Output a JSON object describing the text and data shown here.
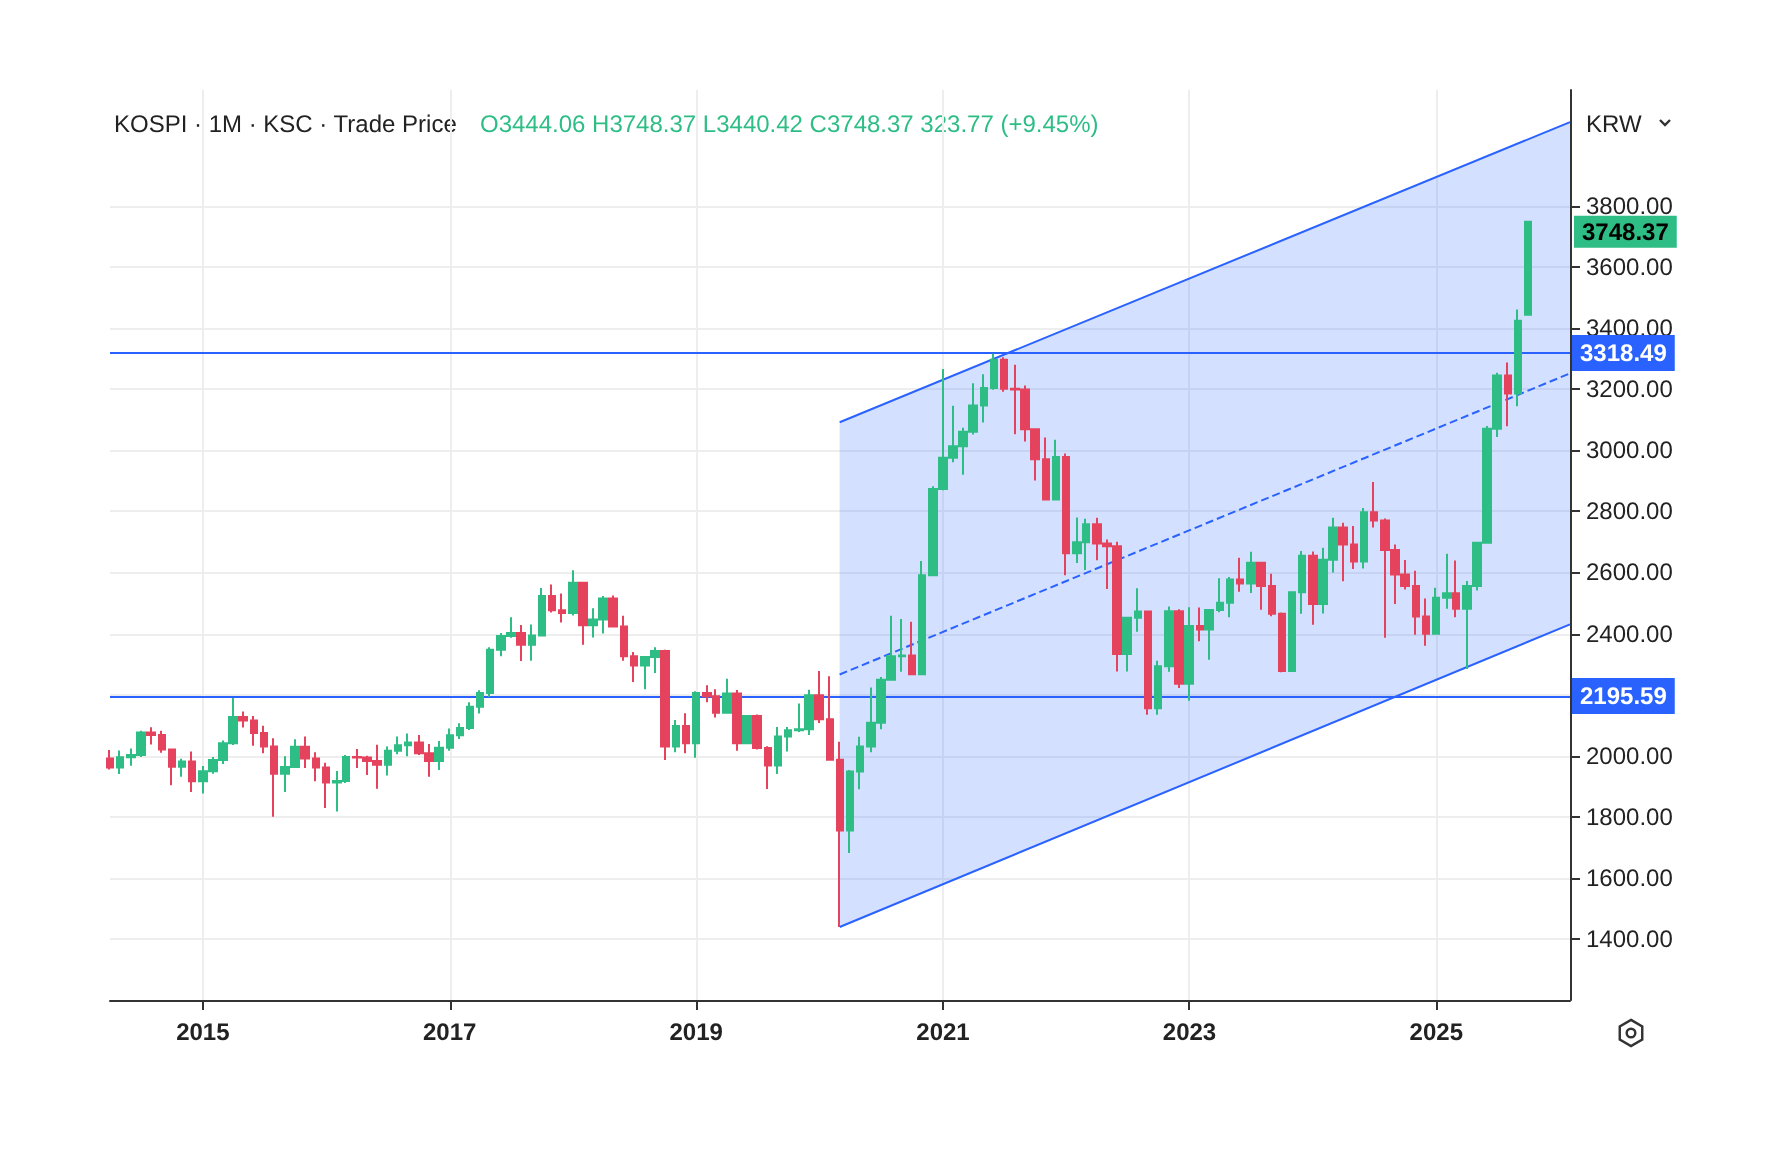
{
  "chart_data": {
    "type": "candlestick",
    "title": "KOSPI · 1M · KSC · Trade Price",
    "subtitle": "O3444.06 H3748.37 L3440.42 C3748.37 323.77 (+9.45%)",
    "ylabel": "KRW",
    "colors": [
      "#e5435d",
      "#2ebd85",
      "#2ebd85",
      "#2ebd85",
      "#e5435d",
      "#e5435d",
      "#e5435d",
      "#2ebd85",
      "#e5435d",
      "#2ebd85",
      "#2ebd85",
      "#2ebd85",
      "#2ebd85",
      "#e5435d",
      "#e5435d",
      "#e5435d",
      "#e5435d",
      "#2ebd85",
      "#2ebd85",
      "#e5435d",
      "#e5435d",
      "#e5435d",
      "#2ebd85",
      "#2ebd85",
      "#e5435d",
      "#e5435d",
      "#e5435d",
      "#2ebd85",
      "#2ebd85",
      "#2ebd85",
      "#e5435d",
      "#e5435d",
      "#2ebd85",
      "#2ebd85",
      "#2ebd85",
      "#2ebd85",
      "#2ebd85",
      "#2ebd85",
      "#2ebd85",
      "#2ebd85",
      "#e5435d",
      "#2ebd85",
      "#2ebd85",
      "#e5435d",
      "#e5435d",
      "#2ebd85",
      "#e5435d",
      "#2ebd85",
      "#2ebd85",
      "#e5435d",
      "#e5435d",
      "#e5435d",
      "#2ebd85",
      "#2ebd85",
      "#e5435d",
      "#2ebd85",
      "#e5435d",
      "#2ebd85",
      "#e5435d",
      "#e5435d",
      "#2ebd85",
      "#e5435d",
      "#2ebd85",
      "#e5435d",
      "#e5435d",
      "#2ebd85",
      "#2ebd85",
      "#2ebd85",
      "#2ebd85",
      "#e5435d",
      "#e5435d",
      "#e5435d",
      "#2ebd85",
      "#2ebd85",
      "#2ebd85",
      "#2ebd85",
      "#2ebd85",
      "#2ebd85",
      "#e5435d",
      "#2ebd85",
      "#2ebd85",
      "#2ebd85",
      "#2ebd85",
      "#2ebd85",
      "#2ebd85",
      "#2ebd85",
      "#2ebd85",
      "#e5435d",
      "#e5435d",
      "#e5435d",
      "#e5435d",
      "#e5435d",
      "#2ebd85",
      "#e5435d",
      "#2ebd85",
      "#2ebd85",
      "#e5435d",
      "#e5435d",
      "#e5435d",
      "#2ebd85",
      "#2ebd85",
      "#e5435d",
      "#2ebd85",
      "#2ebd85",
      "#e5435d",
      "#2ebd85",
      "#e5435d",
      "#2ebd85",
      "#2ebd85",
      "#2ebd85",
      "#e5435d",
      "#2ebd85",
      "#e5435d",
      "#e5435d",
      "#e5435d",
      "#2ebd85",
      "#2ebd85",
      "#e5435d",
      "#2ebd85",
      "#2ebd85",
      "#e5435d",
      "#e5435d",
      "#2ebd85",
      "#e5435d",
      "#e5435d",
      "#e5435d",
      "#e5435d",
      "#e5435d",
      "#e5435d",
      "#2ebd85",
      "#2ebd85",
      "#e5435d",
      "#2ebd85",
      "#2ebd85",
      "#2ebd85",
      "#2ebd85",
      "#e5435d",
      "#2ebd85",
      "#2ebd85"
    ],
    "x": [
      "2014-04",
      "2014-05",
      "2014-06",
      "2014-07",
      "2014-08",
      "2014-09",
      "2014-10",
      "2014-11",
      "2014-12",
      "2015-01",
      "2015-02",
      "2015-03",
      "2015-04",
      "2015-05",
      "2015-06",
      "2015-07",
      "2015-08",
      "2015-09",
      "2015-10",
      "2015-11",
      "2015-12",
      "2016-01",
      "2016-02",
      "2016-03",
      "2016-04",
      "2016-05",
      "2016-06",
      "2016-07",
      "2016-08",
      "2016-09",
      "2016-10",
      "2016-11",
      "2016-12",
      "2017-01",
      "2017-02",
      "2017-03",
      "2017-04",
      "2017-05",
      "2017-06",
      "2017-07",
      "2017-08",
      "2017-09",
      "2017-10",
      "2017-11",
      "2017-12",
      "2018-01",
      "2018-02",
      "2018-03",
      "2018-04",
      "2018-05",
      "2018-06",
      "2018-07",
      "2018-08",
      "2018-09",
      "2018-10",
      "2018-11",
      "2018-12",
      "2019-01",
      "2019-02",
      "2019-03",
      "2019-04",
      "2019-05",
      "2019-06",
      "2019-07",
      "2019-08",
      "2019-09",
      "2019-10",
      "2019-11",
      "2019-12",
      "2020-01",
      "2020-02",
      "2020-03",
      "2020-04",
      "2020-05",
      "2020-06",
      "2020-07",
      "2020-08",
      "2020-09",
      "2020-10",
      "2020-11",
      "2020-12",
      "2021-01",
      "2021-02",
      "2021-03",
      "2021-04",
      "2021-05",
      "2021-06",
      "2021-07",
      "2021-08",
      "2021-09",
      "2021-10",
      "2021-11",
      "2021-12",
      "2022-01",
      "2022-02",
      "2022-03",
      "2022-04",
      "2022-05",
      "2022-06",
      "2022-07",
      "2022-08",
      "2022-09",
      "2022-10",
      "2022-11",
      "2022-12",
      "2023-01",
      "2023-02",
      "2023-03",
      "2023-04",
      "2023-05",
      "2023-06",
      "2023-07",
      "2023-08",
      "2023-09",
      "2023-10",
      "2023-11",
      "2023-12",
      "2024-01",
      "2024-02",
      "2024-03",
      "2024-04",
      "2024-05",
      "2024-06",
      "2024-07",
      "2024-08",
      "2024-09",
      "2024-10",
      "2024-11",
      "2024-12",
      "2025-01",
      "2025-02",
      "2025-03",
      "2025-04",
      "2025-05",
      "2025-06",
      "2025-07",
      "2025-08",
      "2025-09",
      "2025-10"
    ],
    "ohlc": [
      [
        1991,
        2019,
        1955,
        1961
      ],
      [
        1961,
        2017,
        1940,
        1995
      ],
      [
        1995,
        2024,
        1967,
        2002
      ],
      [
        2002,
        2082,
        1996,
        2076
      ],
      [
        2076,
        2093,
        2037,
        2068
      ],
      [
        2068,
        2082,
        2010,
        2020
      ],
      [
        2020,
        2024,
        1903,
        1964
      ],
      [
        1964,
        1990,
        1931,
        1981
      ],
      [
        1981,
        2014,
        1881,
        1916
      ],
      [
        1916,
        1966,
        1876,
        1949
      ],
      [
        1949,
        1996,
        1941,
        1986
      ],
      [
        1986,
        2050,
        1973,
        2041
      ],
      [
        2041,
        2189,
        2035,
        2127
      ],
      [
        2127,
        2145,
        2092,
        2115
      ],
      [
        2115,
        2130,
        2033,
        2074
      ],
      [
        2074,
        2098,
        2008,
        2030
      ],
      [
        2030,
        2057,
        1800,
        1941
      ],
      [
        1941,
        1998,
        1881,
        1963
      ],
      [
        1963,
        2054,
        1962,
        2029
      ],
      [
        2029,
        2063,
        1960,
        1991
      ],
      [
        1991,
        2011,
        1916,
        1961
      ],
      [
        1961,
        1977,
        1829,
        1912
      ],
      [
        1912,
        1950,
        1817,
        1917
      ],
      [
        1917,
        2002,
        1911,
        1996
      ],
      [
        1996,
        2022,
        1960,
        1994
      ],
      [
        1994,
        2000,
        1937,
        1983
      ],
      [
        1983,
        2036,
        1892,
        1970
      ],
      [
        1970,
        2030,
        1935,
        2016
      ],
      [
        2016,
        2063,
        2005,
        2034
      ],
      [
        2034,
        2073,
        1998,
        2043
      ],
      [
        2043,
        2068,
        2002,
        2008
      ],
      [
        2008,
        2038,
        1931,
        1983
      ],
      [
        1983,
        2048,
        1953,
        2026
      ],
      [
        2026,
        2089,
        2016,
        2067
      ],
      [
        2067,
        2106,
        2055,
        2091
      ],
      [
        2091,
        2175,
        2084,
        2160
      ],
      [
        2160,
        2214,
        2138,
        2205
      ],
      [
        2205,
        2355,
        2192,
        2347
      ],
      [
        2347,
        2402,
        2326,
        2392
      ],
      [
        2392,
        2453,
        2386,
        2402
      ],
      [
        2402,
        2428,
        2310,
        2363
      ],
      [
        2363,
        2430,
        2311,
        2394
      ],
      [
        2394,
        2549,
        2394,
        2523
      ],
      [
        2523,
        2561,
        2469,
        2476
      ],
      [
        2476,
        2531,
        2436,
        2467
      ],
      [
        2467,
        2607,
        2459,
        2566
      ],
      [
        2566,
        2569,
        2363,
        2427
      ],
      [
        2427,
        2483,
        2387,
        2446
      ],
      [
        2446,
        2523,
        2400,
        2515
      ],
      [
        2515,
        2525,
        2423,
        2423
      ],
      [
        2423,
        2458,
        2311,
        2326
      ],
      [
        2326,
        2340,
        2241,
        2295
      ],
      [
        2295,
        2326,
        2218,
        2323
      ],
      [
        2323,
        2355,
        2271,
        2343
      ],
      [
        2343,
        2347,
        1986,
        2030
      ],
      [
        2030,
        2117,
        2011,
        2097
      ],
      [
        2097,
        2139,
        2008,
        2041
      ],
      [
        2041,
        2211,
        1993,
        2205
      ],
      [
        2205,
        2231,
        2175,
        2195
      ],
      [
        2195,
        2218,
        2125,
        2141
      ],
      [
        2141,
        2252,
        2139,
        2204
      ],
      [
        2204,
        2215,
        2016,
        2041
      ],
      [
        2041,
        2133,
        2041,
        2130
      ],
      [
        2130,
        2135,
        2020,
        2025
      ],
      [
        2025,
        2031,
        1891,
        1968
      ],
      [
        1968,
        2094,
        1940,
        2063
      ],
      [
        2063,
        2094,
        2014,
        2083
      ],
      [
        2083,
        2171,
        2078,
        2087
      ],
      [
        2087,
        2216,
        2068,
        2198
      ],
      [
        2198,
        2277,
        2107,
        2119
      ],
      [
        2119,
        2260,
        1987,
        1987
      ],
      [
        1987,
        2046,
        1439,
        1755
      ],
      [
        1755,
        1953,
        1681,
        1948
      ],
      [
        1948,
        2062,
        1890,
        2030
      ],
      [
        2030,
        2223,
        2011,
        2108
      ],
      [
        2108,
        2258,
        2087,
        2249
      ],
      [
        2249,
        2458,
        2249,
        2326
      ],
      [
        2326,
        2448,
        2275,
        2328
      ],
      [
        2328,
        2439,
        2267,
        2267
      ],
      [
        2267,
        2638,
        2267,
        2591
      ],
      [
        2591,
        2882,
        2591,
        2873
      ],
      [
        2873,
        3266,
        2869,
        2976
      ],
      [
        2976,
        3146,
        2961,
        3013
      ],
      [
        3013,
        3074,
        2920,
        3061
      ],
      [
        3061,
        3220,
        3052,
        3147
      ],
      [
        3147,
        3249,
        3091,
        3204
      ],
      [
        3204,
        3316,
        3198,
        3297
      ],
      [
        3297,
        3305,
        3192,
        3202
      ],
      [
        3202,
        3280,
        3053,
        3199
      ],
      [
        3199,
        3212,
        3029,
        3069
      ],
      [
        3069,
        3072,
        2901,
        2971
      ],
      [
        2971,
        3042,
        2837,
        2839
      ],
      [
        2839,
        3035,
        2837,
        2978
      ],
      [
        2978,
        2990,
        2591,
        2663
      ],
      [
        2663,
        2780,
        2631,
        2699
      ],
      [
        2699,
        2776,
        2608,
        2758
      ],
      [
        2758,
        2779,
        2640,
        2695
      ],
      [
        2695,
        2708,
        2546,
        2686
      ],
      [
        2686,
        2701,
        2276,
        2333
      ],
      [
        2333,
        2452,
        2276,
        2452
      ],
      [
        2452,
        2548,
        2406,
        2472
      ],
      [
        2472,
        2475,
        2134,
        2155
      ],
      [
        2155,
        2311,
        2134,
        2293
      ],
      [
        2293,
        2489,
        2275,
        2473
      ],
      [
        2473,
        2480,
        2222,
        2236
      ],
      [
        2236,
        2486,
        2180,
        2425
      ],
      [
        2425,
        2485,
        2375,
        2413
      ],
      [
        2413,
        2477,
        2314,
        2477
      ],
      [
        2477,
        2581,
        2470,
        2501
      ],
      [
        2501,
        2585,
        2453,
        2577
      ],
      [
        2577,
        2648,
        2537,
        2564
      ],
      [
        2564,
        2668,
        2533,
        2632
      ],
      [
        2632,
        2634,
        2478,
        2556
      ],
      [
        2556,
        2596,
        2457,
        2465
      ],
      [
        2465,
        2469,
        2273,
        2277
      ],
      [
        2277,
        2538,
        2277,
        2535
      ],
      [
        2535,
        2670,
        2465,
        2655
      ],
      [
        2655,
        2669,
        2429,
        2497
      ],
      [
        2497,
        2681,
        2466,
        2642
      ],
      [
        2642,
        2779,
        2600,
        2747
      ],
      [
        2747,
        2763,
        2571,
        2692
      ],
      [
        2692,
        2752,
        2611,
        2636
      ],
      [
        2636,
        2811,
        2613,
        2797
      ],
      [
        2797,
        2896,
        2747,
        2770
      ],
      [
        2770,
        2777,
        2386,
        2674
      ],
      [
        2674,
        2692,
        2497,
        2593
      ],
      [
        2593,
        2641,
        2544,
        2556
      ],
      [
        2556,
        2606,
        2396,
        2456
      ],
      [
        2456,
        2515,
        2360,
        2399
      ],
      [
        2399,
        2550,
        2397,
        2517
      ],
      [
        2517,
        2661,
        2481,
        2532
      ],
      [
        2532,
        2639,
        2453,
        2481
      ],
      [
        2481,
        2572,
        2284,
        2556
      ],
      [
        2556,
        2698,
        2541,
        2697
      ],
      [
        2697,
        3080,
        2697,
        3071
      ],
      [
        3071,
        3254,
        3044,
        3245
      ],
      [
        3245,
        3288,
        3079,
        3186
      ],
      [
        3186,
        3461,
        3144,
        3424.6
      ],
      [
        3444.06,
        3748.37,
        3440.42,
        3748.37
      ]
    ],
    "series": [
      {
        "type": "line",
        "line_style": "dashed",
        "color": "#2962ff",
        "x": [
          "2020-03",
          "2026-02"
        ],
        "values": [
          2266,
          3252
        ],
        "lower": [
          1439,
          2430
        ],
        "upper": [
          3092,
          4075
        ]
      },
      {
        "type": "line",
        "line_style": "solid",
        "color": "#2962ff",
        "x": [
          "2020-03",
          "2026-02"
        ],
        "values": [
          3092,
          4075
        ]
      },
      {
        "type": "line",
        "line_style": "solid",
        "color": "#2962ff",
        "x": [
          "2020-03",
          "2026-02"
        ],
        "values": [
          1439,
          2430
        ]
      }
    ],
    "ref_lines": [
      {
        "axis": "y",
        "value": 3318.49,
        "label": "3318.49",
        "color": "#2962ff"
      },
      {
        "axis": "y",
        "value": 2195.59,
        "label": "2195.59",
        "color": "#2962ff"
      }
    ],
    "annotations": [
      {
        "text": "3748.37",
        "x": "2025-10",
        "y": 3748.37
      }
    ],
    "xlim": [
      "2014-04",
      "2026-02"
    ],
    "xticks": [
      "2015",
      "2017",
      "2019",
      "2021",
      "2023",
      "2025"
    ],
    "ylim": [
      1200,
      4180
    ],
    "yticks": [
      {
        "value": 1400,
        "label": "1400.00"
      },
      {
        "value": 1600,
        "label": "1600.00"
      },
      {
        "value": 1800,
        "label": "1800.00"
      },
      {
        "value": 2000,
        "label": "2000.00"
      },
      {
        "value": 2200,
        "label": null
      },
      {
        "value": 2400,
        "label": "2400.00"
      },
      {
        "value": 2600,
        "label": "2600.00"
      },
      {
        "value": 2800,
        "label": "2800.00"
      },
      {
        "value": 3000,
        "label": "3000.00"
      },
      {
        "value": 3200,
        "label": "3200.00"
      },
      {
        "value": 3400,
        "label": "3400.00"
      },
      {
        "value": 3600,
        "label": "3600.00"
      },
      {
        "value": 3800,
        "label": "3800.00"
      }
    ],
    "grid": true
  }
}
